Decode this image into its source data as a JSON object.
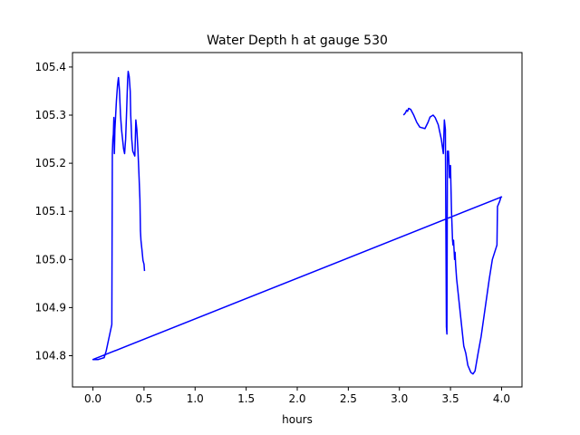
{
  "chart_data": {
    "type": "line",
    "title": "Water Depth h at gauge 530",
    "xlabel": "hours",
    "ylabel": "",
    "xlim": [
      -0.2,
      4.2
    ],
    "ylim": [
      104.735,
      105.43
    ],
    "xticks": [
      0.0,
      0.5,
      1.0,
      1.5,
      2.0,
      2.5,
      3.0,
      3.5,
      4.0
    ],
    "xtick_labels": [
      "0.0",
      "0.5",
      "1.0",
      "1.5",
      "2.0",
      "2.5",
      "3.0",
      "3.5",
      "4.0"
    ],
    "yticks": [
      104.8,
      104.9,
      105.0,
      105.1,
      105.2,
      105.3,
      105.4
    ],
    "ytick_labels": [
      "104.8",
      "104.9",
      "105.0",
      "105.1",
      "105.2",
      "105.3",
      "105.4"
    ],
    "grid": false,
    "series": [
      {
        "color": "#0000ff",
        "points": [
          [
            3.04,
            105.3
          ],
          [
            3.06,
            105.305
          ],
          [
            3.07,
            105.31
          ],
          [
            3.08,
            105.308
          ],
          [
            3.09,
            105.314
          ],
          [
            3.11,
            105.312
          ],
          [
            3.14,
            105.3
          ],
          [
            3.17,
            105.285
          ],
          [
            3.2,
            105.275
          ],
          [
            3.25,
            105.272
          ],
          [
            3.28,
            105.285
          ],
          [
            3.3,
            105.296
          ],
          [
            3.33,
            105.3
          ],
          [
            3.35,
            105.295
          ],
          [
            3.38,
            105.28
          ],
          [
            3.41,
            105.25
          ],
          [
            3.43,
            105.22
          ],
          [
            3.44,
            105.29
          ],
          [
            3.45,
            105.27
          ],
          [
            3.46,
            104.86
          ],
          [
            3.465,
            104.845
          ],
          [
            3.47,
            105.225
          ],
          [
            3.48,
            105.225
          ],
          [
            3.485,
            105.2
          ],
          [
            3.49,
            105.17
          ],
          [
            3.495,
            105.195
          ],
          [
            3.5,
            105.195
          ],
          [
            3.51,
            105.1
          ],
          [
            3.52,
            105.04
          ],
          [
            3.525,
            105.03
          ],
          [
            3.53,
            105.04
          ],
          [
            3.54,
            105.0
          ],
          [
            3.545,
            105.015
          ],
          [
            3.55,
            104.99
          ],
          [
            3.56,
            104.96
          ],
          [
            3.58,
            104.92
          ],
          [
            3.6,
            104.88
          ],
          [
            3.63,
            104.82
          ],
          [
            3.65,
            104.805
          ],
          [
            3.67,
            104.78
          ],
          [
            3.7,
            104.765
          ],
          [
            3.72,
            104.762
          ],
          [
            3.74,
            104.768
          ],
          [
            3.77,
            104.805
          ],
          [
            3.8,
            104.84
          ],
          [
            3.84,
            104.9
          ],
          [
            3.88,
            104.96
          ],
          [
            3.91,
            105.0
          ],
          [
            3.94,
            105.02
          ],
          [
            3.955,
            105.03
          ],
          [
            3.96,
            105.11
          ],
          [
            3.98,
            105.12
          ],
          [
            3.995,
            105.13
          ],
          [
            4.0,
            105.13
          ],
          [
            0.0,
            104.792
          ],
          [
            0.05,
            104.792
          ],
          [
            0.08,
            104.794
          ],
          [
            0.11,
            104.796
          ],
          [
            0.13,
            104.81
          ],
          [
            0.16,
            104.84
          ],
          [
            0.185,
            104.865
          ],
          [
            0.19,
            105.22
          ],
          [
            0.195,
            105.25
          ],
          [
            0.2,
            105.26
          ],
          [
            0.205,
            105.295
          ],
          [
            0.21,
            105.22
          ],
          [
            0.215,
            105.27
          ],
          [
            0.22,
            105.29
          ],
          [
            0.23,
            105.33
          ],
          [
            0.24,
            105.36
          ],
          [
            0.245,
            105.37
          ],
          [
            0.25,
            105.378
          ],
          [
            0.26,
            105.35
          ],
          [
            0.27,
            105.3
          ],
          [
            0.28,
            105.27
          ],
          [
            0.29,
            105.25
          ],
          [
            0.3,
            105.23
          ],
          [
            0.31,
            105.22
          ],
          [
            0.32,
            105.25
          ],
          [
            0.33,
            105.31
          ],
          [
            0.34,
            105.375
          ],
          [
            0.345,
            105.391
          ],
          [
            0.355,
            105.38
          ],
          [
            0.365,
            105.35
          ],
          [
            0.37,
            105.3
          ],
          [
            0.38,
            105.25
          ],
          [
            0.39,
            105.225
          ],
          [
            0.4,
            105.22
          ],
          [
            0.41,
            105.215
          ],
          [
            0.415,
            105.25
          ],
          [
            0.42,
            105.29
          ],
          [
            0.43,
            105.27
          ],
          [
            0.44,
            105.23
          ],
          [
            0.45,
            105.18
          ],
          [
            0.46,
            105.125
          ],
          [
            0.465,
            105.06
          ],
          [
            0.47,
            105.04
          ],
          [
            0.48,
            105.02
          ],
          [
            0.49,
            104.998
          ],
          [
            0.5,
            104.99
          ],
          [
            0.505,
            104.976
          ]
        ]
      }
    ]
  }
}
